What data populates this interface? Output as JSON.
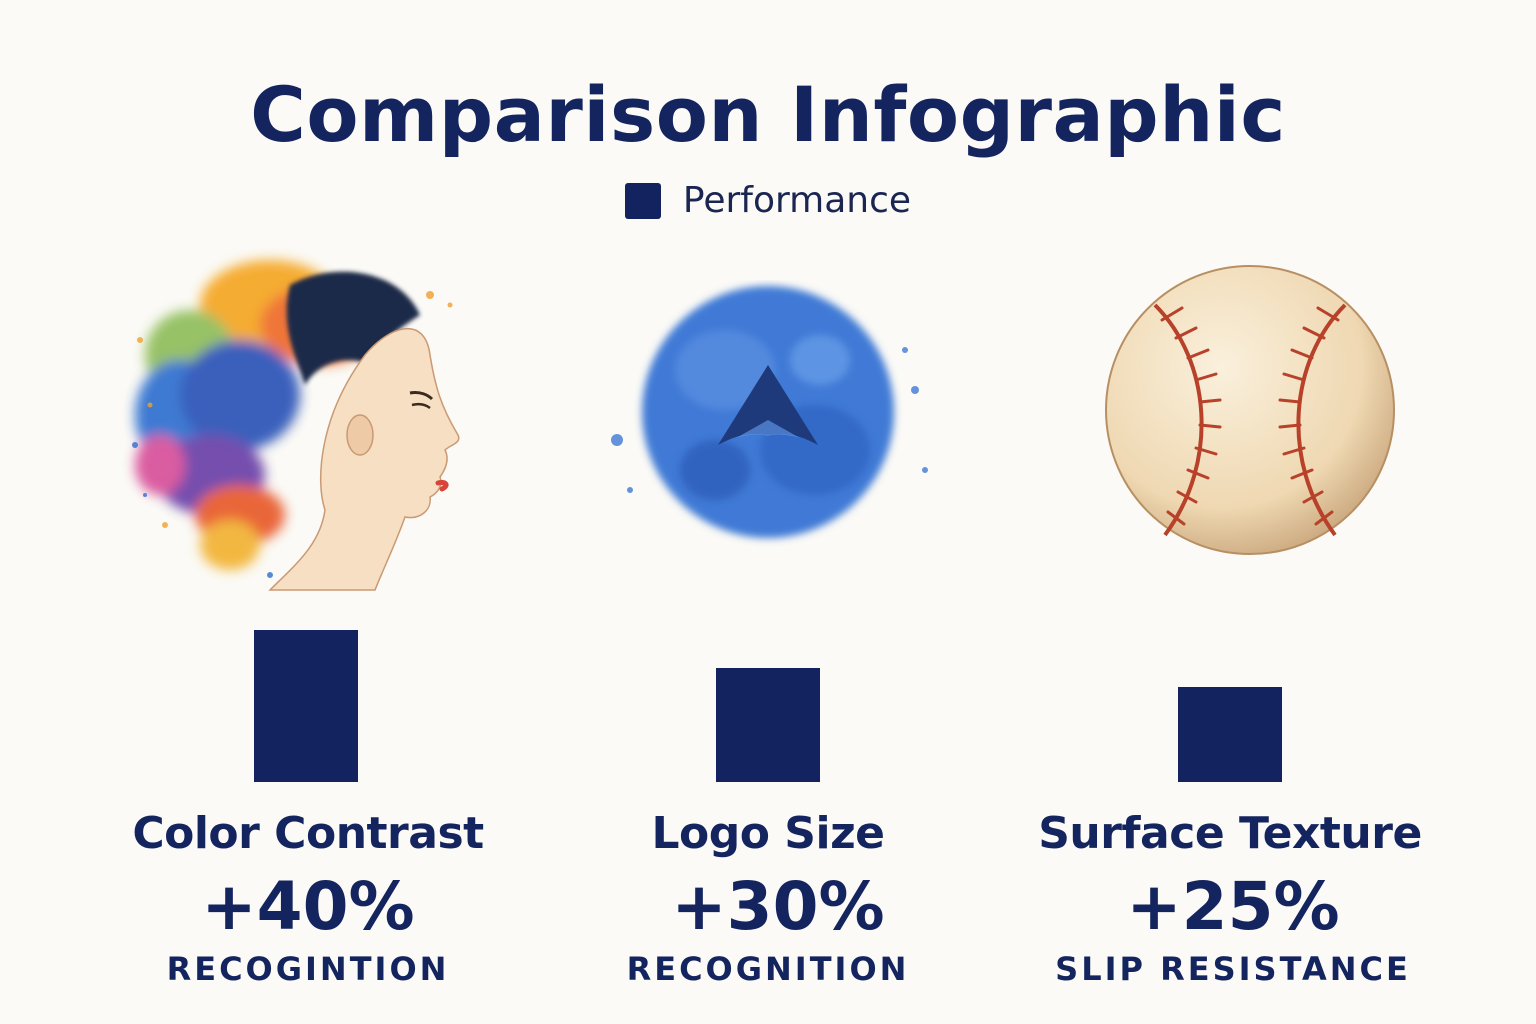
{
  "title": "Comparison Infographic",
  "legend": {
    "label": "Performance",
    "color": "#13235f"
  },
  "colors": {
    "bar": "#13235f",
    "text": "#14245e",
    "background": "#fbfaf6"
  },
  "chart_data": {
    "type": "bar",
    "title": "Comparison Infographic",
    "legend": [
      "Performance"
    ],
    "categories": [
      "Color Contrast",
      "Logo Size",
      "Surface Texture"
    ],
    "series": [
      {
        "name": "Performance",
        "values": [
          40,
          30,
          25
        ]
      }
    ],
    "ylim": [
      0,
      50
    ],
    "grid": false,
    "legend_position": "top-center"
  },
  "items": [
    {
      "label": "Color Contrast",
      "value": "+40%",
      "metric": "RECOGINTION",
      "icon": "watercolor-woman-profile-icon"
    },
    {
      "label": "Logo Size",
      "value": "+30%",
      "metric": "RECOGNITION",
      "icon": "blue-triangle-logo-icon"
    },
    {
      "label": "Surface Texture",
      "value": "+25%",
      "metric": "SLIP RESISTANCE",
      "icon": "baseball-icon"
    }
  ]
}
